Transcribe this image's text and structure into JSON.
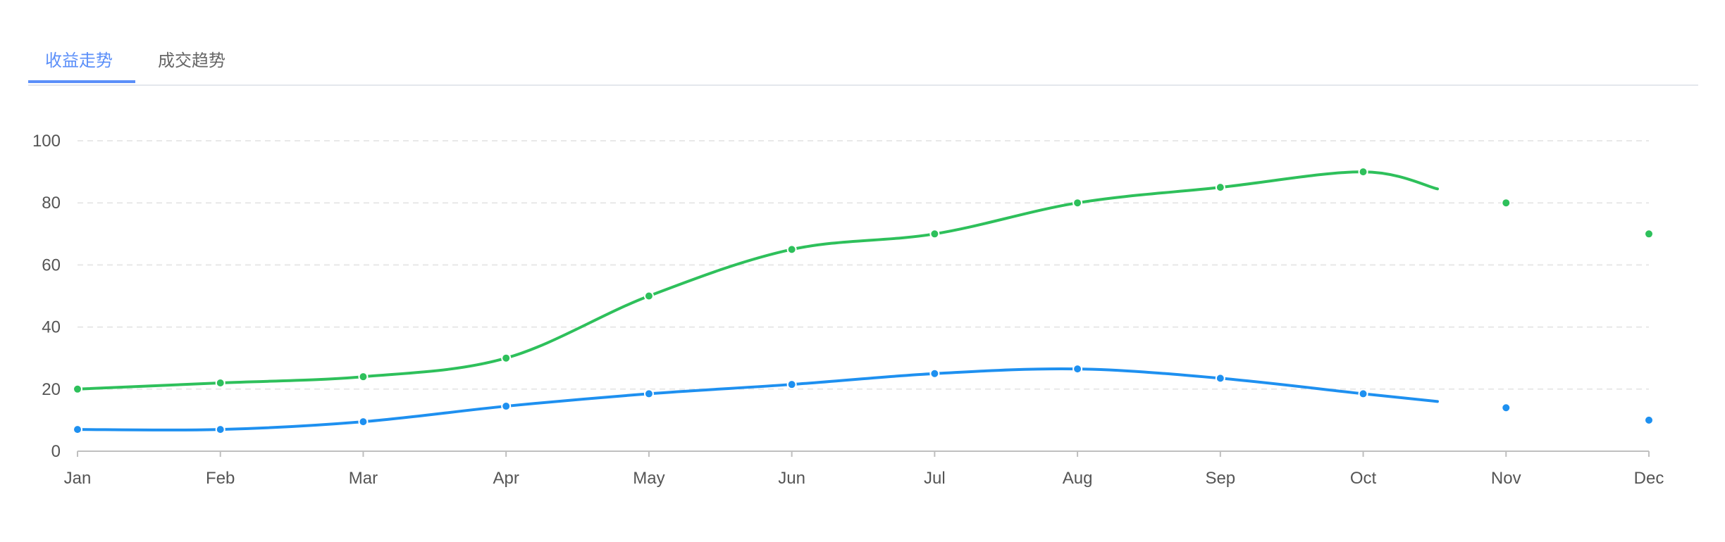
{
  "tabs": [
    {
      "label": "收益走势",
      "active": true
    },
    {
      "label": "成交趋势",
      "active": false
    }
  ],
  "colors": {
    "accent": "#5b8ff9",
    "series_green": "#2ec05b",
    "series_blue": "#1e90f0"
  },
  "chart_data": {
    "type": "line",
    "categories": [
      "Jan",
      "Feb",
      "Mar",
      "Apr",
      "May",
      "Jun",
      "Jul",
      "Aug",
      "Sep",
      "Oct",
      "Nov",
      "Dec"
    ],
    "ylim": [
      0,
      100
    ],
    "yticks": [
      0,
      20,
      40,
      60,
      80,
      100
    ],
    "grid": true,
    "smooth": true,
    "series": [
      {
        "color": "#2ec05b",
        "values": [
          20,
          22,
          24,
          30,
          50,
          65,
          70,
          80,
          85,
          90,
          80,
          70
        ],
        "line_until_index": 9
      },
      {
        "color": "#1e90f0",
        "values": [
          7,
          7,
          9.5,
          14.5,
          18.5,
          21.5,
          25,
          26.5,
          23.5,
          18.5,
          14,
          10
        ],
        "line_until_index": 9
      }
    ]
  }
}
